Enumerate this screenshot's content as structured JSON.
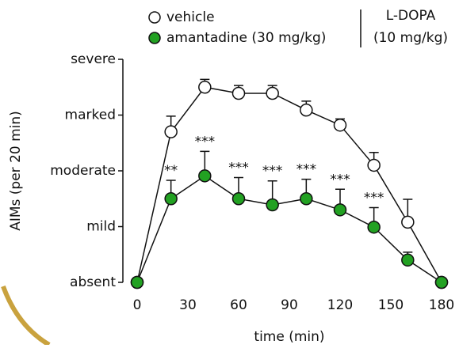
{
  "chart_data": {
    "type": "line",
    "x_label": "time (min)",
    "y_label": "AIMs (per 20 min)",
    "x": [
      0,
      20,
      40,
      60,
      80,
      100,
      120,
      140,
      160,
      180
    ],
    "xlim": [
      0,
      180
    ],
    "xticks": [
      0,
      30,
      60,
      90,
      120,
      150,
      180
    ],
    "ylim": [
      0,
      4
    ],
    "yticks": [
      {
        "value": 0,
        "label": "absent"
      },
      {
        "value": 1,
        "label": "mild"
      },
      {
        "value": 2,
        "label": "moderate"
      },
      {
        "value": 3,
        "label": "marked"
      },
      {
        "value": 4,
        "label": "severe"
      }
    ],
    "series": [
      {
        "name": "vehicle",
        "color": "#ffffff",
        "values": [
          0,
          2.7,
          3.5,
          3.39,
          3.39,
          3.09,
          2.82,
          2.1,
          1.08,
          0
        ],
        "errors": [
          null,
          0.28,
          0.14,
          0.14,
          0.14,
          0.16,
          0.11,
          0.23,
          0.41,
          null
        ]
      },
      {
        "name": "amantadine (30 mg/kg)",
        "color": "#22a122",
        "values": [
          0,
          1.5,
          1.91,
          1.5,
          1.39,
          1.5,
          1.3,
          0.99,
          0.4,
          0
        ],
        "errors": [
          null,
          0.33,
          0.44,
          0.38,
          0.43,
          0.35,
          0.37,
          0.35,
          0.14,
          null
        ]
      }
    ],
    "legend_note": [
      "L-DOPA",
      "(10 mg/kg)"
    ],
    "annotations": [
      {
        "x": 20,
        "text": "**"
      },
      {
        "x": 40,
        "text": "***"
      },
      {
        "x": 60,
        "text": "***"
      },
      {
        "x": 80,
        "text": "***"
      },
      {
        "x": 100,
        "text": "***"
      },
      {
        "x": 120,
        "text": "***"
      },
      {
        "x": 140,
        "text": "***"
      }
    ]
  }
}
